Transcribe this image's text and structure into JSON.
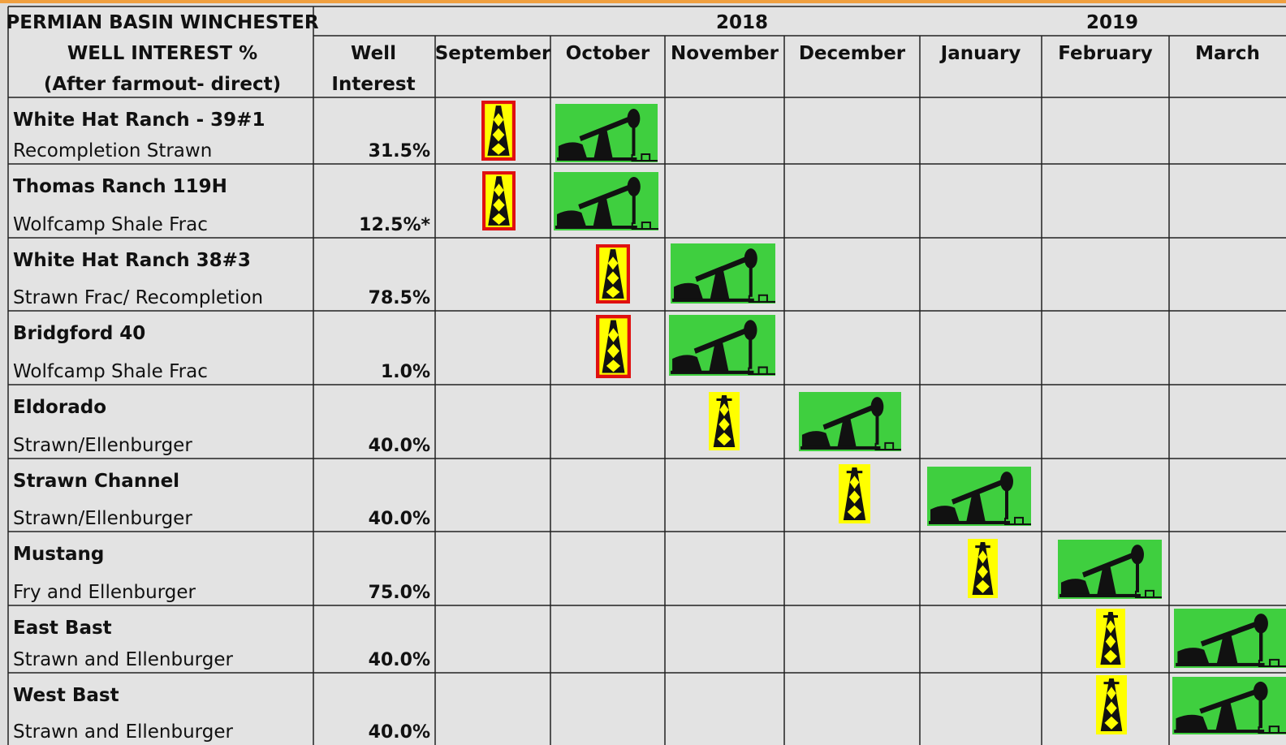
{
  "header": {
    "title_lines": [
      "PERMIAN BASIN WINCHESTER",
      "WELL INTEREST %",
      "(After farmout- direct)"
    ],
    "interest_header": [
      "Well",
      "Interest"
    ],
    "years": [
      "2018",
      "2019"
    ],
    "months": [
      "September",
      "October",
      "November",
      "December",
      "January",
      "February",
      "March"
    ]
  },
  "rows": [
    {
      "name": "White Hat Ranch - 39#1",
      "description": "Recompletion Strawn",
      "interest": "31.5%"
    },
    {
      "name": "Thomas Ranch 119H",
      "description": "Wolfcamp Shale Frac",
      "interest": "12.5%*"
    },
    {
      "name": "White Hat Ranch 38#3",
      "description": "Strawn Frac/ Recompletion",
      "interest": "78.5%"
    },
    {
      "name": "Bridgford 40",
      "description": "Wolfcamp Shale Frac",
      "interest": "1.0%"
    },
    {
      "name": "Eldorado",
      "description": "Strawn/Ellenburger",
      "interest": "40.0%"
    },
    {
      "name": "Strawn Channel",
      "description": "Strawn/Ellenburger",
      "interest": "40.0%"
    },
    {
      "name": "Mustang",
      "description": "Fry and Ellenburger",
      "interest": "75.0%"
    },
    {
      "name": "East Bast",
      "description": "Strawn and Ellenburger",
      "interest": "40.0%"
    },
    {
      "name": "West  Bast",
      "description": "Strawn and Ellenburger",
      "interest": "40.0%"
    }
  ]
}
